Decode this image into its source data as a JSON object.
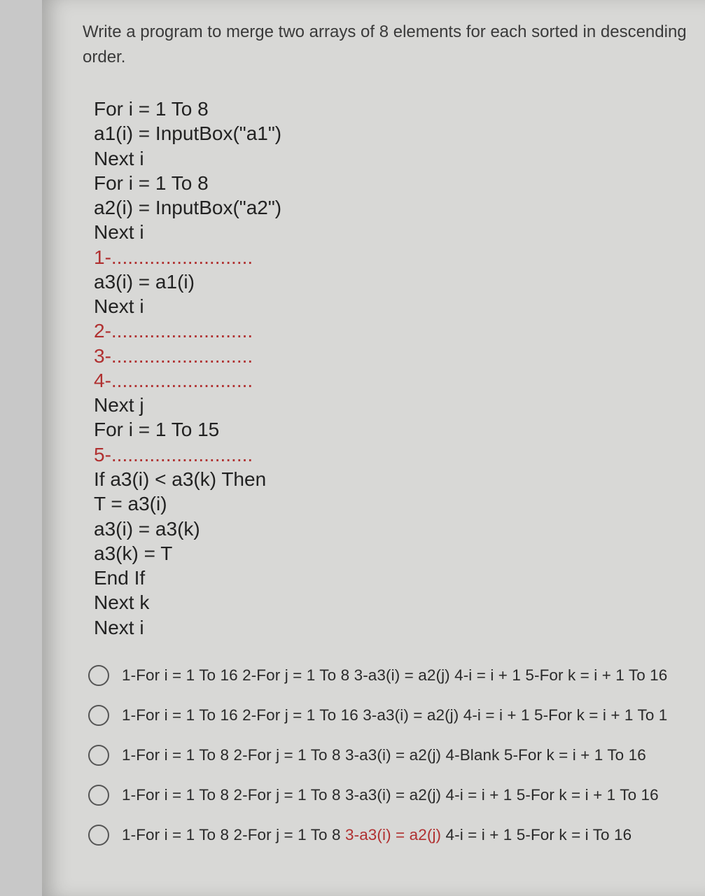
{
  "question": "Write a program to merge two arrays of 8 elements for each sorted in descending order.",
  "code": {
    "l1": "For i = 1 To 8",
    "l2": "a1(i) = InputBox(\"a1\")",
    "l3": "Next i",
    "l4": "For i = 1 To 8",
    "l5": "a2(i) = InputBox(\"a2\")",
    "l6": "Next i",
    "b1": "1-..........................",
    "l7": "a3(i) = a1(i)",
    "l8": "Next i",
    "b2": "2-..........................",
    "b3": "3-..........................",
    "b4": "4-..........................",
    "l9": "Next j",
    "l10": "For i = 1 To 15",
    "b5": "5-..........................",
    "l11": "If a3(i) < a3(k) Then",
    "l12": "T = a3(i)",
    "l13": "a3(i) = a3(k)",
    "l14": "a3(k) = T",
    "l15": "End If",
    "l16": "Next k",
    "l17": "Next i"
  },
  "options": {
    "o1a": "1-For i = 1 To 16 2-For j = 1 To 8 3-a3(i) = a2(j) 4-i = i + 1 5-For k = i + 1 To 16",
    "o2a": "1-For i = 1 To 16 2-For j = 1 To 16 3-a3(i) = a2(j) 4-i = i + 1 5-For k = i + 1 To 1",
    "o3a": "1-For i = 1 To 8 2-For j = 1 To 8 3-a3(i) = a2(j) 4-Blank 5-For k = i + 1 To 16",
    "o4a": "1-For i = 1 To 8 2-For j = 1 To 8 3-a3(i) = a2(j) 4-i = i + 1 5-For k = i + 1 To 16",
    "o5a": "1-For i = 1 To 8 2-For j = 1 To 8 ",
    "o5b": "3-a3(i) = a2(j)",
    "o5c": " 4-i = i + 1 5-For k = i To 16"
  }
}
